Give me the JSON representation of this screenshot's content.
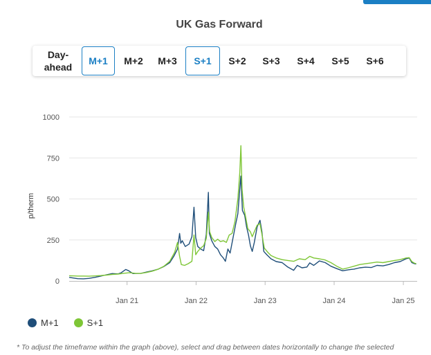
{
  "tabs": [
    {
      "id": "day-ahead",
      "label": "Day-ahead",
      "active": false
    },
    {
      "id": "m1",
      "label": "M+1",
      "active": true
    },
    {
      "id": "m2",
      "label": "M+2",
      "active": false
    },
    {
      "id": "m3",
      "label": "M+3",
      "active": false
    },
    {
      "id": "s1",
      "label": "S+1",
      "active": true
    },
    {
      "id": "s2",
      "label": "S+2",
      "active": false
    },
    {
      "id": "s3",
      "label": "S+3",
      "active": false
    },
    {
      "id": "s4",
      "label": "S+4",
      "active": false
    },
    {
      "id": "s5",
      "label": "S+5",
      "active": false
    },
    {
      "id": "s6",
      "label": "S+6",
      "active": false
    }
  ],
  "legend": [
    {
      "name": "M+1",
      "color": "#1f4e79"
    },
    {
      "name": "S+1",
      "color": "#7ec636"
    }
  ],
  "footnote": "* To adjust the timeframe within the graph (above), select and drag between dates horizontally to change the selected",
  "colors": {
    "accent": "#1b7fc4",
    "m1": "#1f4e79",
    "s1": "#7ec636",
    "grid": "#e6e6e6"
  },
  "chart_data": {
    "type": "line",
    "title": "UK Gas Forward",
    "xlabel": "",
    "ylabel": "p/therm",
    "ylim": [
      0,
      1000
    ],
    "yticks": [
      0,
      250,
      500,
      750,
      1000
    ],
    "xlim": [
      "2020-03-01",
      "2025-03-15"
    ],
    "xticks": [
      {
        "date": "2021-01-01",
        "label": "Jan 21"
      },
      {
        "date": "2022-01-01",
        "label": "Jan 22"
      },
      {
        "date": "2023-01-01",
        "label": "Jan 23"
      },
      {
        "date": "2024-01-01",
        "label": "Jan 24"
      },
      {
        "date": "2025-01-01",
        "label": "Jan 25"
      }
    ],
    "grid": true,
    "legend_position": "bottom-left",
    "series": [
      {
        "name": "M+1",
        "color": "#1f4e79",
        "points": [
          [
            "2020-03-01",
            22
          ],
          [
            "2020-04-15",
            14
          ],
          [
            "2020-05-15",
            13
          ],
          [
            "2020-06-15",
            16
          ],
          [
            "2020-07-15",
            22
          ],
          [
            "2020-08-15",
            30
          ],
          [
            "2020-09-15",
            38
          ],
          [
            "2020-10-15",
            45
          ],
          [
            "2020-11-15",
            43
          ],
          [
            "2020-12-01",
            50
          ],
          [
            "2020-12-25",
            70
          ],
          [
            "2021-01-10",
            62
          ],
          [
            "2021-02-01",
            45
          ],
          [
            "2021-03-15",
            46
          ],
          [
            "2021-04-15",
            55
          ],
          [
            "2021-05-15",
            62
          ],
          [
            "2021-06-15",
            72
          ],
          [
            "2021-07-15",
            88
          ],
          [
            "2021-08-15",
            112
          ],
          [
            "2021-09-05",
            150
          ],
          [
            "2021-09-25",
            195
          ],
          [
            "2021-10-06",
            290
          ],
          [
            "2021-10-12",
            230
          ],
          [
            "2021-10-20",
            245
          ],
          [
            "2021-11-05",
            210
          ],
          [
            "2021-11-25",
            225
          ],
          [
            "2021-12-10",
            270
          ],
          [
            "2021-12-21",
            450
          ],
          [
            "2021-12-30",
            265
          ],
          [
            "2022-01-10",
            210
          ],
          [
            "2022-01-25",
            195
          ],
          [
            "2022-02-10",
            185
          ],
          [
            "2022-02-24",
            285
          ],
          [
            "2022-03-07",
            540
          ],
          [
            "2022-03-12",
            290
          ],
          [
            "2022-03-25",
            245
          ],
          [
            "2022-04-10",
            210
          ],
          [
            "2022-04-25",
            195
          ],
          [
            "2022-05-10",
            160
          ],
          [
            "2022-05-25",
            140
          ],
          [
            "2022-06-05",
            120
          ],
          [
            "2022-06-18",
            195
          ],
          [
            "2022-06-30",
            170
          ],
          [
            "2022-07-15",
            260
          ],
          [
            "2022-07-30",
            350
          ],
          [
            "2022-08-10",
            410
          ],
          [
            "2022-08-20",
            560
          ],
          [
            "2022-08-26",
            640
          ],
          [
            "2022-09-03",
            430
          ],
          [
            "2022-09-15",
            400
          ],
          [
            "2022-09-25",
            330
          ],
          [
            "2022-10-05",
            280
          ],
          [
            "2022-10-15",
            215
          ],
          [
            "2022-10-25",
            180
          ],
          [
            "2022-11-05",
            235
          ],
          [
            "2022-11-20",
            330
          ],
          [
            "2022-12-05",
            370
          ],
          [
            "2022-12-15",
            300
          ],
          [
            "2022-12-25",
            180
          ],
          [
            "2023-01-10",
            160
          ],
          [
            "2023-02-01",
            135
          ],
          [
            "2023-03-01",
            118
          ],
          [
            "2023-04-01",
            112
          ],
          [
            "2023-05-01",
            85
          ],
          [
            "2023-06-01",
            65
          ],
          [
            "2023-06-20",
            95
          ],
          [
            "2023-07-15",
            80
          ],
          [
            "2023-08-10",
            85
          ],
          [
            "2023-08-25",
            110
          ],
          [
            "2023-09-15",
            95
          ],
          [
            "2023-10-15",
            122
          ],
          [
            "2023-11-15",
            112
          ],
          [
            "2023-12-15",
            90
          ],
          [
            "2024-01-15",
            75
          ],
          [
            "2024-02-15",
            62
          ],
          [
            "2024-03-15",
            68
          ],
          [
            "2024-04-15",
            72
          ],
          [
            "2024-05-15",
            80
          ],
          [
            "2024-06-15",
            84
          ],
          [
            "2024-07-15",
            82
          ],
          [
            "2024-08-15",
            95
          ],
          [
            "2024-09-15",
            92
          ],
          [
            "2024-10-15",
            100
          ],
          [
            "2024-11-15",
            112
          ],
          [
            "2024-12-15",
            118
          ],
          [
            "2025-01-15",
            135
          ],
          [
            "2025-02-01",
            140
          ],
          [
            "2025-02-15",
            112
          ],
          [
            "2025-03-01",
            105
          ],
          [
            "2025-03-10",
            103
          ]
        ]
      },
      {
        "name": "S+1",
        "color": "#7ec636",
        "points": [
          [
            "2020-03-01",
            32
          ],
          [
            "2020-04-15",
            30
          ],
          [
            "2020-05-15",
            30
          ],
          [
            "2020-06-15",
            29
          ],
          [
            "2020-07-15",
            31
          ],
          [
            "2020-08-15",
            33
          ],
          [
            "2020-09-15",
            36
          ],
          [
            "2020-10-15",
            40
          ],
          [
            "2020-11-15",
            42
          ],
          [
            "2020-12-15",
            47
          ],
          [
            "2021-01-15",
            50
          ],
          [
            "2021-02-15",
            46
          ],
          [
            "2021-03-15",
            46
          ],
          [
            "2021-04-15",
            52
          ],
          [
            "2021-05-15",
            60
          ],
          [
            "2021-06-15",
            72
          ],
          [
            "2021-07-15",
            90
          ],
          [
            "2021-08-15",
            120
          ],
          [
            "2021-09-10",
            175
          ],
          [
            "2021-09-25",
            235
          ],
          [
            "2021-10-06",
            150
          ],
          [
            "2021-10-15",
            100
          ],
          [
            "2021-11-01",
            95
          ],
          [
            "2021-11-20",
            105
          ],
          [
            "2021-12-10",
            120
          ],
          [
            "2021-12-21",
            280
          ],
          [
            "2021-12-30",
            160
          ],
          [
            "2022-01-10",
            180
          ],
          [
            "2022-01-25",
            200
          ],
          [
            "2022-02-10",
            215
          ],
          [
            "2022-02-24",
            260
          ],
          [
            "2022-03-07",
            420
          ],
          [
            "2022-03-14",
            300
          ],
          [
            "2022-03-25",
            265
          ],
          [
            "2022-04-10",
            240
          ],
          [
            "2022-04-25",
            255
          ],
          [
            "2022-05-10",
            240
          ],
          [
            "2022-05-25",
            245
          ],
          [
            "2022-06-10",
            235
          ],
          [
            "2022-06-25",
            280
          ],
          [
            "2022-07-10",
            290
          ],
          [
            "2022-07-25",
            360
          ],
          [
            "2022-08-10",
            500
          ],
          [
            "2022-08-20",
            660
          ],
          [
            "2022-08-26",
            825
          ],
          [
            "2022-09-01",
            560
          ],
          [
            "2022-09-10",
            450
          ],
          [
            "2022-09-20",
            390
          ],
          [
            "2022-10-01",
            320
          ],
          [
            "2022-10-15",
            300
          ],
          [
            "2022-10-25",
            270
          ],
          [
            "2022-11-05",
            300
          ],
          [
            "2022-11-20",
            340
          ],
          [
            "2022-12-05",
            350
          ],
          [
            "2022-12-15",
            285
          ],
          [
            "2022-12-28",
            200
          ],
          [
            "2023-01-15",
            175
          ],
          [
            "2023-02-01",
            155
          ],
          [
            "2023-03-01",
            140
          ],
          [
            "2023-04-01",
            130
          ],
          [
            "2023-05-01",
            125
          ],
          [
            "2023-06-01",
            120
          ],
          [
            "2023-07-01",
            135
          ],
          [
            "2023-08-01",
            130
          ],
          [
            "2023-08-25",
            150
          ],
          [
            "2023-09-15",
            140
          ],
          [
            "2023-10-15",
            135
          ],
          [
            "2023-11-15",
            128
          ],
          [
            "2023-12-15",
            112
          ],
          [
            "2024-01-15",
            90
          ],
          [
            "2024-02-15",
            72
          ],
          [
            "2024-03-15",
            80
          ],
          [
            "2024-04-15",
            90
          ],
          [
            "2024-05-15",
            100
          ],
          [
            "2024-06-15",
            105
          ],
          [
            "2024-07-15",
            110
          ],
          [
            "2024-08-15",
            115
          ],
          [
            "2024-09-15",
            112
          ],
          [
            "2024-10-15",
            118
          ],
          [
            "2024-11-15",
            125
          ],
          [
            "2024-12-15",
            130
          ],
          [
            "2025-01-15",
            140
          ],
          [
            "2025-02-01",
            142
          ],
          [
            "2025-02-15",
            118
          ],
          [
            "2025-03-01",
            108
          ],
          [
            "2025-03-10",
            106
          ]
        ]
      }
    ]
  }
}
